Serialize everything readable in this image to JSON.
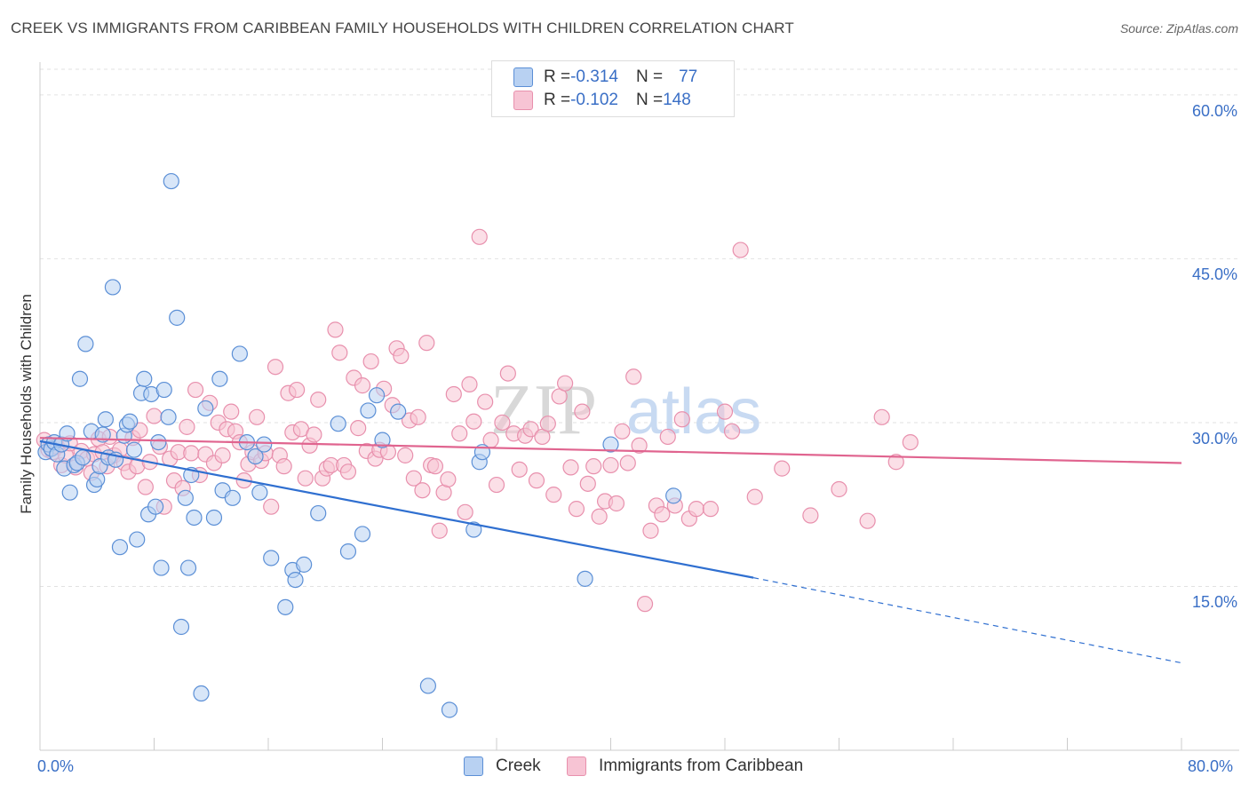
{
  "header": {
    "title": "CREEK VS IMMIGRANTS FROM CARIBBEAN FAMILY HOUSEHOLDS WITH CHILDREN CORRELATION CHART",
    "source": "Source: ZipAtlas.com"
  },
  "legend": {
    "series1": {
      "r_label": "R = ",
      "r_value": "-0.314",
      "n_label": "N = ",
      "n_value": "77"
    },
    "series2": {
      "r_label": "R = ",
      "r_value": "-0.102",
      "n_label": "N = ",
      "n_value": "148"
    }
  },
  "colors": {
    "creek_fill": "#b8d1f2",
    "creek_stroke": "#5b8fd6",
    "creek_line": "#2f6fd0",
    "carib_fill": "#f7c4d4",
    "carib_stroke": "#e890ad",
    "carib_line": "#e0648f",
    "axis_label": "#3a6fc6",
    "grid": "#e2e2e2"
  },
  "watermark": {
    "zip": "ZIP",
    "atlas": "atlas"
  },
  "chart_data": {
    "type": "scatter",
    "title": "CREEK VS IMMIGRANTS FROM CARIBBEAN FAMILY HOUSEHOLDS WITH CHILDREN CORRELATION CHART",
    "xlabel": "",
    "ylabel": "Family Households with Children",
    "xlim": [
      0,
      80
    ],
    "ylim": [
      0,
      63
    ],
    "x_tick_labels": [
      "0.0%",
      "80.0%"
    ],
    "y_ticks": [
      15,
      30,
      45,
      60
    ],
    "y_tick_labels": [
      "15.0%",
      "30.0%",
      "45.0%",
      "60.0%"
    ],
    "grid": true,
    "legend_position": "top-center",
    "series": [
      {
        "name": "Creek",
        "r": -0.314,
        "n": 77,
        "trend": {
          "x0": 0,
          "y0": 28.3,
          "x1": 50,
          "y1": 15.8,
          "dash_to_x": 80,
          "dash_to_y": 8.0
        },
        "points": [
          [
            0.4,
            27.3
          ],
          [
            0.6,
            28.0
          ],
          [
            0.8,
            27.6
          ],
          [
            1.0,
            28.2
          ],
          [
            1.2,
            27.1
          ],
          [
            1.5,
            28.0
          ],
          [
            1.7,
            25.8
          ],
          [
            1.9,
            29.0
          ],
          [
            2.1,
            23.6
          ],
          [
            2.4,
            26.1
          ],
          [
            2.6,
            26.3
          ],
          [
            2.8,
            34.0
          ],
          [
            3.0,
            26.8
          ],
          [
            3.2,
            37.2
          ],
          [
            3.6,
            29.2
          ],
          [
            3.8,
            24.3
          ],
          [
            4.0,
            24.8
          ],
          [
            4.2,
            26.0
          ],
          [
            4.4,
            28.9
          ],
          [
            4.6,
            30.3
          ],
          [
            4.8,
            26.8
          ],
          [
            5.1,
            42.4
          ],
          [
            5.3,
            26.6
          ],
          [
            5.6,
            18.6
          ],
          [
            5.9,
            28.8
          ],
          [
            6.1,
            29.8
          ],
          [
            6.3,
            30.1
          ],
          [
            6.6,
            27.5
          ],
          [
            6.8,
            19.3
          ],
          [
            7.1,
            32.7
          ],
          [
            7.3,
            34.0
          ],
          [
            7.6,
            21.6
          ],
          [
            7.8,
            32.6
          ],
          [
            8.1,
            22.3
          ],
          [
            8.3,
            28.2
          ],
          [
            8.5,
            16.7
          ],
          [
            8.7,
            33.0
          ],
          [
            9.0,
            30.5
          ],
          [
            9.2,
            52.1
          ],
          [
            9.6,
            39.6
          ],
          [
            9.9,
            11.3
          ],
          [
            10.2,
            23.1
          ],
          [
            10.4,
            16.7
          ],
          [
            10.6,
            25.2
          ],
          [
            10.8,
            21.3
          ],
          [
            11.3,
            5.2
          ],
          [
            11.6,
            31.3
          ],
          [
            12.2,
            21.3
          ],
          [
            12.6,
            34.0
          ],
          [
            12.8,
            23.8
          ],
          [
            13.5,
            23.1
          ],
          [
            14.0,
            36.3
          ],
          [
            14.5,
            28.2
          ],
          [
            15.1,
            26.9
          ],
          [
            15.4,
            23.6
          ],
          [
            15.7,
            28.0
          ],
          [
            16.2,
            17.6
          ],
          [
            17.2,
            13.1
          ],
          [
            17.7,
            16.5
          ],
          [
            17.9,
            15.6
          ],
          [
            18.5,
            17.0
          ],
          [
            19.5,
            21.7
          ],
          [
            20.9,
            29.9
          ],
          [
            21.6,
            18.2
          ],
          [
            22.6,
            19.8
          ],
          [
            23.0,
            31.1
          ],
          [
            23.6,
            32.5
          ],
          [
            24.0,
            28.4
          ],
          [
            25.1,
            31.0
          ],
          [
            27.2,
            5.9
          ],
          [
            28.7,
            3.7
          ],
          [
            30.4,
            20.2
          ],
          [
            30.8,
            26.4
          ],
          [
            31.0,
            27.3
          ],
          [
            38.2,
            15.7
          ],
          [
            40.0,
            28.0
          ],
          [
            44.4,
            23.3
          ]
        ]
      },
      {
        "name": "Immigrants from Caribbean",
        "r": -0.102,
        "n": 148,
        "trend": {
          "x0": 0,
          "y0": 28.6,
          "x1": 80,
          "y1": 26.3
        },
        "points": [
          [
            0.3,
            28.4
          ],
          [
            0.6,
            27.5
          ],
          [
            0.9,
            27.3
          ],
          [
            1.2,
            27.8
          ],
          [
            1.5,
            26.1
          ],
          [
            1.8,
            27.0
          ],
          [
            2.1,
            28.1
          ],
          [
            2.5,
            25.9
          ],
          [
            2.9,
            27.4
          ],
          [
            3.3,
            26.7
          ],
          [
            3.6,
            25.4
          ],
          [
            3.8,
            27.1
          ],
          [
            4.1,
            28.5
          ],
          [
            4.4,
            27.3
          ],
          [
            4.7,
            26.0
          ],
          [
            4.9,
            28.7
          ],
          [
            5.2,
            27.0
          ],
          [
            5.6,
            27.5
          ],
          [
            5.9,
            26.3
          ],
          [
            6.2,
            25.5
          ],
          [
            6.5,
            28.6
          ],
          [
            6.8,
            26.0
          ],
          [
            7.0,
            29.3
          ],
          [
            7.4,
            24.1
          ],
          [
            7.7,
            26.4
          ],
          [
            8.0,
            30.6
          ],
          [
            8.4,
            27.8
          ],
          [
            8.7,
            22.3
          ],
          [
            9.1,
            26.7
          ],
          [
            9.4,
            24.7
          ],
          [
            9.7,
            27.3
          ],
          [
            10.0,
            24.0
          ],
          [
            10.3,
            29.6
          ],
          [
            10.6,
            27.2
          ],
          [
            10.9,
            33.0
          ],
          [
            11.2,
            25.2
          ],
          [
            11.6,
            27.1
          ],
          [
            11.9,
            31.8
          ],
          [
            12.2,
            26.3
          ],
          [
            12.5,
            30.0
          ],
          [
            12.8,
            27.0
          ],
          [
            13.1,
            29.4
          ],
          [
            13.4,
            31.0
          ],
          [
            13.7,
            29.2
          ],
          [
            14.0,
            28.2
          ],
          [
            14.3,
            24.7
          ],
          [
            14.6,
            26.2
          ],
          [
            14.9,
            27.3
          ],
          [
            15.2,
            30.5
          ],
          [
            15.5,
            26.5
          ],
          [
            15.8,
            27.2
          ],
          [
            16.2,
            22.3
          ],
          [
            16.5,
            35.1
          ],
          [
            16.8,
            27.0
          ],
          [
            17.1,
            26.0
          ],
          [
            17.4,
            32.7
          ],
          [
            17.7,
            29.1
          ],
          [
            18.0,
            33.0
          ],
          [
            18.3,
            29.4
          ],
          [
            18.6,
            24.9
          ],
          [
            18.9,
            27.9
          ],
          [
            19.2,
            28.9
          ],
          [
            19.5,
            32.1
          ],
          [
            19.8,
            24.9
          ],
          [
            20.1,
            25.8
          ],
          [
            20.4,
            26.1
          ],
          [
            20.7,
            38.5
          ],
          [
            21.0,
            36.4
          ],
          [
            21.3,
            26.1
          ],
          [
            21.6,
            25.5
          ],
          [
            22.0,
            34.1
          ],
          [
            22.3,
            29.5
          ],
          [
            22.6,
            33.4
          ],
          [
            22.9,
            27.4
          ],
          [
            23.2,
            35.6
          ],
          [
            23.5,
            26.7
          ],
          [
            23.8,
            27.5
          ],
          [
            24.1,
            33.1
          ],
          [
            24.4,
            27.3
          ],
          [
            24.7,
            31.6
          ],
          [
            25.0,
            36.8
          ],
          [
            25.3,
            36.1
          ],
          [
            25.6,
            27.0
          ],
          [
            25.9,
            30.2
          ],
          [
            26.2,
            24.9
          ],
          [
            26.5,
            30.5
          ],
          [
            26.8,
            23.8
          ],
          [
            27.1,
            37.3
          ],
          [
            27.4,
            26.1
          ],
          [
            27.7,
            26.0
          ],
          [
            28.0,
            20.1
          ],
          [
            28.3,
            23.6
          ],
          [
            28.6,
            24.8
          ],
          [
            29.0,
            32.6
          ],
          [
            29.4,
            29.0
          ],
          [
            29.8,
            21.8
          ],
          [
            30.1,
            33.5
          ],
          [
            30.4,
            30.1
          ],
          [
            30.8,
            47.0
          ],
          [
            31.2,
            31.9
          ],
          [
            31.6,
            28.4
          ],
          [
            32.0,
            24.3
          ],
          [
            32.4,
            30.0
          ],
          [
            32.8,
            34.5
          ],
          [
            33.2,
            29.0
          ],
          [
            33.6,
            25.7
          ],
          [
            34.0,
            28.8
          ],
          [
            34.4,
            29.4
          ],
          [
            34.8,
            24.7
          ],
          [
            35.2,
            28.7
          ],
          [
            35.6,
            29.9
          ],
          [
            36.0,
            23.4
          ],
          [
            36.4,
            32.4
          ],
          [
            36.8,
            33.6
          ],
          [
            37.2,
            25.9
          ],
          [
            37.6,
            22.1
          ],
          [
            38.0,
            31.0
          ],
          [
            38.4,
            24.4
          ],
          [
            38.8,
            26.0
          ],
          [
            39.2,
            21.4
          ],
          [
            39.6,
            22.8
          ],
          [
            40.0,
            26.1
          ],
          [
            40.4,
            22.6
          ],
          [
            40.8,
            29.2
          ],
          [
            41.2,
            26.3
          ],
          [
            41.6,
            34.2
          ],
          [
            42.0,
            27.9
          ],
          [
            42.4,
            13.4
          ],
          [
            42.8,
            20.1
          ],
          [
            43.2,
            22.4
          ],
          [
            43.6,
            21.6
          ],
          [
            44.0,
            28.7
          ],
          [
            44.5,
            22.4
          ],
          [
            45.0,
            30.3
          ],
          [
            45.5,
            21.2
          ],
          [
            46.0,
            22.1
          ],
          [
            47.0,
            22.1
          ],
          [
            48.0,
            31.0
          ],
          [
            48.5,
            29.2
          ],
          [
            49.1,
            45.8
          ],
          [
            50.1,
            23.2
          ],
          [
            52.0,
            25.8
          ],
          [
            54.0,
            21.5
          ],
          [
            56.0,
            23.9
          ],
          [
            58.0,
            21.0
          ],
          [
            59.0,
            30.5
          ],
          [
            60.0,
            26.4
          ],
          [
            61.0,
            28.2
          ]
        ]
      }
    ]
  },
  "bottom_legend": {
    "creek": "Creek",
    "carib": "Immigrants from Caribbean"
  }
}
